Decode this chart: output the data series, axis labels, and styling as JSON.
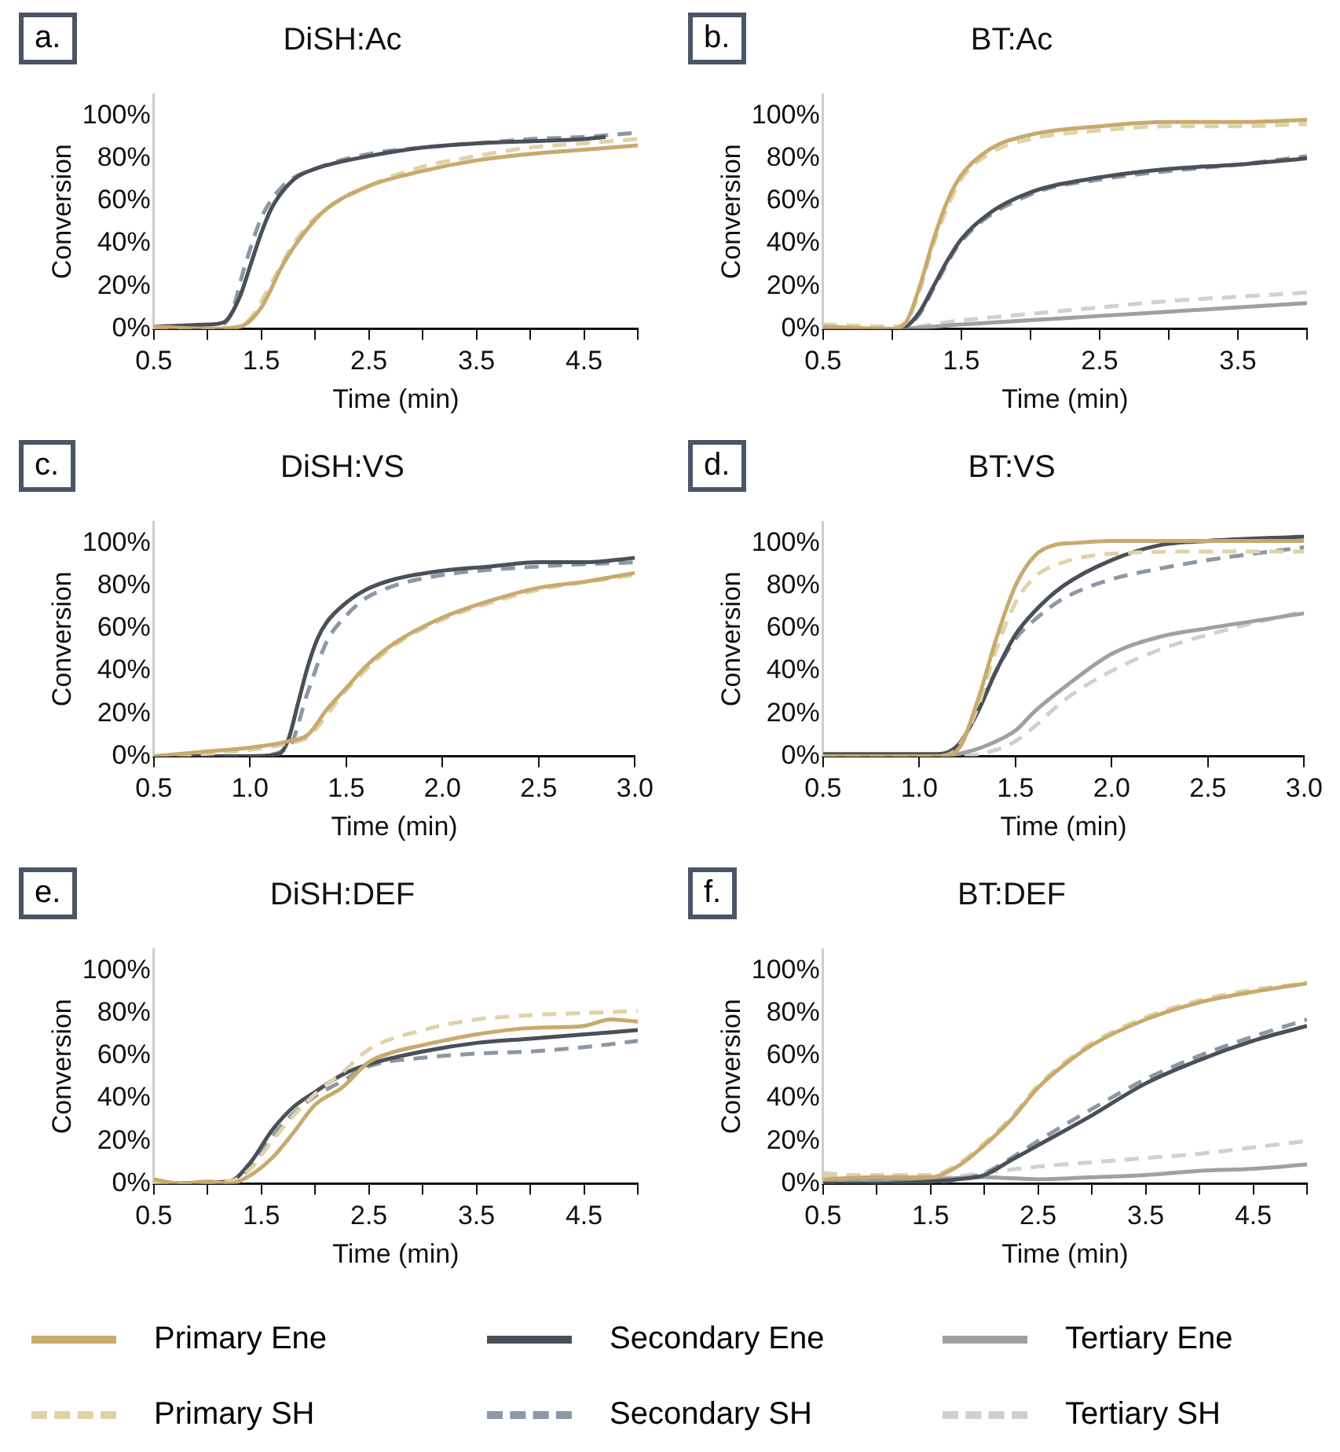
{
  "chart_data": [
    {
      "type": "line",
      "title": "DiSH:Ac",
      "xlabel": "Time (min)",
      "ylabel": "Conversion",
      "annotations": [
        "a."
      ],
      "legend": "bottom",
      "xlim": [
        0.5,
        5
      ],
      "ylim": [
        0,
        110
      ],
      "xticks": [
        0.5,
        {
          "value": 1,
          "label": null
        },
        1.5,
        {
          "value": 2,
          "label": null
        },
        2.5,
        {
          "value": 3,
          "label": null
        },
        3.5,
        {
          "value": 4,
          "label": null
        },
        4.5,
        {
          "value": 5,
          "label": null
        }
      ],
      "yticks": [
        {
          "value": 0,
          "label": "0%"
        },
        {
          "value": 20,
          "label": "20%"
        },
        {
          "value": 40,
          "label": "40%"
        },
        {
          "value": 60,
          "label": "60%"
        },
        {
          "value": 80,
          "label": "80%"
        },
        {
          "value": 100,
          "label": "100%"
        }
      ],
      "series": [
        {
          "name": "Primary Ene",
          "color": "#c8aa6e",
          "line_style": "solid",
          "x": [
            0.5,
            1.0,
            1.3,
            1.5,
            1.7,
            1.9,
            2.1,
            2.5,
            3.0,
            3.5,
            4.0,
            4.5,
            5.0
          ],
          "values": [
            1,
            0,
            1,
            10,
            30,
            45,
            56,
            67,
            74,
            79,
            82,
            84,
            86
          ]
        },
        {
          "name": "Primary SH",
          "color": "#e0d2a8",
          "line_style": "dashed",
          "x": [
            0.5,
            1.2,
            1.4,
            1.6,
            1.8,
            2.0,
            2.5,
            3.0,
            3.5,
            4.0,
            4.5,
            5.0
          ],
          "values": [
            0,
            0,
            5,
            22,
            40,
            52,
            67,
            76,
            81,
            85,
            87,
            89
          ]
        },
        {
          "name": "Secondary Ene",
          "color": "#4a5058",
          "line_style": "solid",
          "x": [
            0.5,
            1.0,
            1.15,
            1.3,
            1.4,
            1.5,
            1.6,
            1.8,
            2.0,
            2.5,
            3.0,
            3.5,
            4.0,
            4.5,
            4.7
          ],
          "values": [
            1,
            2,
            3,
            15,
            30,
            45,
            57,
            70,
            75,
            81,
            85,
            87,
            88,
            89,
            90
          ]
        },
        {
          "name": "Secondary SH",
          "color": "#8d97a6",
          "line_style": "dashed",
          "x": [
            0.5,
            1.0,
            1.2,
            1.35,
            1.5,
            1.7,
            2.0,
            2.5,
            3.0,
            3.5,
            4.0,
            4.5,
            5.0
          ],
          "values": [
            0,
            0,
            5,
            30,
            52,
            67,
            75,
            82,
            85,
            87,
            89,
            90,
            92
          ]
        }
      ]
    },
    {
      "type": "line",
      "title": "BT:Ac",
      "xlabel": "Time (min)",
      "ylabel": "Conversion",
      "annotations": [
        "b."
      ],
      "legend": "bottom",
      "xlim": [
        0.5,
        4
      ],
      "ylim": [
        0,
        110
      ],
      "xticks": [
        0.5,
        {
          "value": 1,
          "label": null
        },
        1.5,
        {
          "value": 2,
          "label": null
        },
        2.5,
        {
          "value": 3,
          "label": null
        },
        3.5,
        {
          "value": 4,
          "label": null
        }
      ],
      "yticks": [
        {
          "value": 0,
          "label": "0%"
        },
        {
          "value": 20,
          "label": "20%"
        },
        {
          "value": 40,
          "label": "40%"
        },
        {
          "value": 60,
          "label": "60%"
        },
        {
          "value": 80,
          "label": "80%"
        },
        {
          "value": 100,
          "label": "100%"
        }
      ],
      "series": [
        {
          "name": "Primary Ene",
          "color": "#c8aa6e",
          "line_style": "solid",
          "x": [
            0.5,
            1.0,
            1.1,
            1.2,
            1.3,
            1.4,
            1.5,
            1.7,
            2.0,
            2.5,
            3.0,
            3.5,
            4.0
          ],
          "values": [
            1,
            0,
            3,
            20,
            42,
            60,
            72,
            84,
            91,
            95,
            97,
            97,
            98
          ]
        },
        {
          "name": "Primary SH",
          "color": "#e0d2a8",
          "line_style": "dashed",
          "x": [
            0.5,
            1.0,
            1.1,
            1.2,
            1.3,
            1.5,
            1.7,
            2.0,
            2.5,
            3.0,
            3.5,
            4.0
          ],
          "values": [
            2,
            1,
            3,
            18,
            40,
            70,
            82,
            89,
            93,
            95,
            95,
            96
          ]
        },
        {
          "name": "Secondary Ene",
          "color": "#4a5058",
          "line_style": "solid",
          "x": [
            0.5,
            1.0,
            1.1,
            1.2,
            1.3,
            1.4,
            1.5,
            1.7,
            2.0,
            2.5,
            3.0,
            3.5,
            4.0
          ],
          "values": [
            0,
            0,
            1,
            8,
            20,
            32,
            42,
            54,
            64,
            71,
            75,
            77,
            80
          ]
        },
        {
          "name": "Secondary SH",
          "color": "#8d97a6",
          "line_style": "dashed",
          "x": [
            0.5,
            1.0,
            1.1,
            1.2,
            1.3,
            1.5,
            2.0,
            2.5,
            3.0,
            3.5,
            4.0
          ],
          "values": [
            0,
            0,
            1,
            7,
            19,
            41,
            63,
            70,
            74,
            77,
            81
          ]
        },
        {
          "name": "Tertiary Ene",
          "color": "#a0a0a0",
          "line_style": "solid",
          "x": [
            0.5,
            1.0,
            1.5,
            2.0,
            2.5,
            3.0,
            3.5,
            4.0
          ],
          "values": [
            0,
            0,
            2,
            4,
            6,
            8,
            10,
            12
          ]
        },
        {
          "name": "Tertiary SH",
          "color": "#d0d0d0",
          "line_style": "dashed",
          "x": [
            0.5,
            1.0,
            1.5,
            2.0,
            2.5,
            3.0,
            3.5,
            4.0
          ],
          "values": [
            0,
            0,
            4,
            7,
            10,
            13,
            15,
            17
          ]
        }
      ]
    },
    {
      "type": "line",
      "title": "DiSH:VS",
      "xlabel": "Time (min)",
      "ylabel": "Conversion",
      "annotations": [
        "c."
      ],
      "legend": "bottom",
      "xlim": [
        0.5,
        3
      ],
      "ylim": [
        0,
        110
      ],
      "xticks": [
        0.5,
        {
          "value": 1,
          "label": "1.0"
        },
        1.5,
        {
          "value": 2,
          "label": "2.0"
        },
        2.5,
        {
          "value": 3,
          "label": "3.0"
        }
      ],
      "yticks": [
        {
          "value": 0,
          "label": "0%"
        },
        {
          "value": 20,
          "label": "20%"
        },
        {
          "value": 40,
          "label": "40%"
        },
        {
          "value": 60,
          "label": "60%"
        },
        {
          "value": 80,
          "label": "80%"
        },
        {
          "value": 100,
          "label": "100%"
        }
      ],
      "series": [
        {
          "name": "Primary Ene",
          "color": "#c8aa6e",
          "line_style": "solid",
          "x": [
            0.5,
            0.75,
            1.0,
            1.2,
            1.3,
            1.4,
            1.5,
            1.6,
            1.75,
            2.0,
            2.25,
            2.5,
            2.75,
            3.0
          ],
          "values": [
            0,
            2,
            4,
            7,
            10,
            22,
            32,
            42,
            53,
            65,
            73,
            79,
            82,
            86
          ]
        },
        {
          "name": "Primary SH",
          "color": "#e0d2a8",
          "line_style": "dashed",
          "x": [
            0.5,
            0.75,
            1.0,
            1.2,
            1.3,
            1.5,
            1.75,
            2.0,
            2.25,
            2.5,
            3.0
          ],
          "values": [
            0,
            1,
            3,
            6,
            9,
            31,
            52,
            64,
            72,
            78,
            85
          ]
        },
        {
          "name": "Secondary Ene",
          "color": "#4a5058",
          "line_style": "solid",
          "x": [
            0.5,
            1.0,
            1.15,
            1.2,
            1.25,
            1.3,
            1.35,
            1.4,
            1.5,
            1.6,
            1.75,
            2.0,
            2.25,
            2.5,
            2.75,
            3.0
          ],
          "values": [
            0,
            0,
            1,
            8,
            25,
            42,
            55,
            63,
            72,
            78,
            83,
            87,
            89,
            91,
            91,
            93
          ]
        },
        {
          "name": "Secondary SH",
          "color": "#8d97a6",
          "line_style": "dashed",
          "x": [
            0.5,
            1.0,
            1.2,
            1.3,
            1.4,
            1.5,
            1.6,
            1.75,
            2.0,
            2.5,
            3.0
          ],
          "values": [
            0,
            0,
            4,
            30,
            54,
            66,
            74,
            80,
            85,
            89,
            91
          ]
        }
      ]
    },
    {
      "type": "line",
      "title": "BT:VS",
      "xlabel": "Time (min)",
      "ylabel": "Conversion",
      "annotations": [
        "d."
      ],
      "legend": "bottom",
      "xlim": [
        0.5,
        3
      ],
      "ylim": [
        0,
        110
      ],
      "xticks": [
        0.5,
        {
          "value": 1,
          "label": "1.0"
        },
        1.5,
        {
          "value": 2,
          "label": "2.0"
        },
        2.5,
        {
          "value": 3,
          "label": "3.0"
        }
      ],
      "yticks": [
        {
          "value": 0,
          "label": "0%"
        },
        {
          "value": 20,
          "label": "20%"
        },
        {
          "value": 40,
          "label": "40%"
        },
        {
          "value": 60,
          "label": "60%"
        },
        {
          "value": 80,
          "label": "80%"
        },
        {
          "value": 100,
          "label": "100%"
        }
      ],
      "series": [
        {
          "name": "Primary Ene",
          "color": "#c8aa6e",
          "line_style": "solid",
          "x": [
            0.5,
            1.1,
            1.2,
            1.3,
            1.4,
            1.5,
            1.6,
            1.7,
            1.8,
            2.0,
            2.5,
            3.0
          ],
          "values": [
            0,
            0,
            3,
            25,
            55,
            80,
            94,
            99,
            100,
            101,
            101,
            101
          ]
        },
        {
          "name": "Primary SH",
          "color": "#e0d2a8",
          "line_style": "dashed",
          "x": [
            0.5,
            1.1,
            1.2,
            1.3,
            1.4,
            1.5,
            1.6,
            1.75,
            2.0,
            2.5,
            3.0
          ],
          "values": [
            0,
            0,
            4,
            22,
            50,
            72,
            84,
            91,
            95,
            96,
            96
          ]
        },
        {
          "name": "Secondary Ene",
          "color": "#4a5058",
          "line_style": "solid",
          "x": [
            0.5,
            1.0,
            1.1,
            1.2,
            1.3,
            1.4,
            1.5,
            1.6,
            1.75,
            2.0,
            2.25,
            2.5,
            3.0
          ],
          "values": [
            1,
            1,
            1,
            5,
            20,
            40,
            57,
            68,
            80,
            92,
            99,
            101,
            103
          ]
        },
        {
          "name": "Secondary SH",
          "color": "#8d97a6",
          "line_style": "dashed",
          "x": [
            0.5,
            1.0,
            1.2,
            1.3,
            1.4,
            1.5,
            1.6,
            1.75,
            2.0,
            2.25,
            2.5,
            3.0
          ],
          "values": [
            0,
            0,
            4,
            22,
            40,
            55,
            64,
            74,
            83,
            88,
            92,
            98
          ]
        },
        {
          "name": "Tertiary Ene",
          "color": "#a0a0a0",
          "line_style": "solid",
          "x": [
            0.5,
            1.1,
            1.25,
            1.4,
            1.5,
            1.6,
            1.75,
            2.0,
            2.25,
            2.5,
            3.0
          ],
          "values": [
            0,
            0,
            2,
            7,
            12,
            21,
            32,
            48,
            56,
            60,
            67
          ]
        },
        {
          "name": "Tertiary SH",
          "color": "#d0d0d0",
          "line_style": "dashed",
          "x": [
            0.5,
            1.2,
            1.4,
            1.5,
            1.6,
            1.75,
            2.0,
            2.25,
            2.5,
            3.0
          ],
          "values": [
            0,
            0,
            3,
            7,
            14,
            26,
            40,
            50,
            57,
            68
          ]
        }
      ]
    },
    {
      "type": "line",
      "title": "DiSH:DEF",
      "xlabel": "Time (min)",
      "ylabel": "Conversion",
      "annotations": [
        "e."
      ],
      "legend": "bottom",
      "xlim": [
        0.5,
        5
      ],
      "ylim": [
        0,
        110
      ],
      "xticks": [
        0.5,
        {
          "value": 1,
          "label": null
        },
        1.5,
        {
          "value": 2,
          "label": null
        },
        2.5,
        {
          "value": 3,
          "label": null
        },
        3.5,
        {
          "value": 4,
          "label": null
        },
        4.5,
        {
          "value": 5,
          "label": null
        }
      ],
      "yticks": [
        {
          "value": 0,
          "label": "0%"
        },
        {
          "value": 20,
          "label": "20%"
        },
        {
          "value": 40,
          "label": "40%"
        },
        {
          "value": 60,
          "label": "60%"
        },
        {
          "value": 80,
          "label": "80%"
        },
        {
          "value": 100,
          "label": "100%"
        }
      ],
      "series": [
        {
          "name": "Primary Ene",
          "color": "#c8aa6e",
          "line_style": "solid",
          "x": [
            0.5,
            0.75,
            1.0,
            1.2,
            1.4,
            1.6,
            1.8,
            2.0,
            2.25,
            2.5,
            2.75,
            3.0,
            3.5,
            4.0,
            4.5,
            4.75,
            5.0
          ],
          "values": [
            2,
            0,
            1,
            0,
            4,
            12,
            24,
            37,
            45,
            57,
            62,
            65,
            70,
            73,
            74,
            77,
            76
          ]
        },
        {
          "name": "Primary SH",
          "color": "#e0d2a8",
          "line_style": "dashed",
          "x": [
            0.5,
            1.2,
            1.4,
            1.6,
            1.8,
            2.0,
            2.25,
            2.5,
            3.0,
            3.5,
            4.0,
            4.5,
            5.0
          ],
          "values": [
            0,
            1,
            7,
            20,
            32,
            42,
            52,
            63,
            72,
            77,
            79,
            80,
            81
          ]
        },
        {
          "name": "Secondary Ene",
          "color": "#4a5058",
          "line_style": "solid",
          "x": [
            0.5,
            1.2,
            1.4,
            1.6,
            1.8,
            2.0,
            2.25,
            2.5,
            3.0,
            3.5,
            4.0,
            4.5,
            5.0
          ],
          "values": [
            0,
            1,
            10,
            25,
            36,
            43,
            51,
            56,
            62,
            66,
            68,
            70,
            72
          ]
        },
        {
          "name": "Secondary SH",
          "color": "#8d97a6",
          "line_style": "dashed",
          "x": [
            0.5,
            1.2,
            1.4,
            1.6,
            1.8,
            2.0,
            2.25,
            2.5,
            3.0,
            3.5,
            4.0,
            4.5,
            5.0
          ],
          "values": [
            0,
            0,
            8,
            22,
            33,
            41,
            48,
            55,
            59,
            61,
            62,
            64,
            67
          ]
        }
      ]
    },
    {
      "type": "line",
      "title": "BT:DEF",
      "xlabel": "Time (min)",
      "ylabel": "Conversion",
      "annotations": [
        "f."
      ],
      "legend": "bottom",
      "xlim": [
        0.5,
        5
      ],
      "ylim": [
        0,
        110
      ],
      "xticks": [
        0.5,
        {
          "value": 1,
          "label": null
        },
        1.5,
        {
          "value": 2,
          "label": null
        },
        2.5,
        {
          "value": 3,
          "label": null
        },
        3.5,
        {
          "value": 4,
          "label": null
        },
        4.5,
        {
          "value": 5,
          "label": null
        }
      ],
      "yticks": [
        {
          "value": 0,
          "label": "0%"
        },
        {
          "value": 20,
          "label": "20%"
        },
        {
          "value": 40,
          "label": "40%"
        },
        {
          "value": 60,
          "label": "60%"
        },
        {
          "value": 80,
          "label": "80%"
        },
        {
          "value": 100,
          "label": "100%"
        }
      ],
      "series": [
        {
          "name": "Primary Ene",
          "color": "#c8aa6e",
          "line_style": "solid",
          "x": [
            0.5,
            1.0,
            1.5,
            1.75,
            2.0,
            2.25,
            2.5,
            2.75,
            3.0,
            3.5,
            4.0,
            4.5,
            5.0
          ],
          "values": [
            2,
            3,
            3,
            8,
            18,
            30,
            45,
            56,
            65,
            77,
            85,
            90,
            94
          ]
        },
        {
          "name": "Primary SH",
          "color": "#e0d2a8",
          "line_style": "dashed",
          "x": [
            0.5,
            1.0,
            1.5,
            1.75,
            2.0,
            2.25,
            2.5,
            2.75,
            3.0,
            3.5,
            4.0,
            4.5,
            5.0
          ],
          "values": [
            4,
            4,
            4,
            9,
            19,
            31,
            46,
            57,
            66,
            78,
            86,
            91,
            94
          ]
        },
        {
          "name": "Secondary Ene",
          "color": "#4a5058",
          "line_style": "solid",
          "x": [
            0.5,
            1.0,
            1.5,
            1.75,
            2.0,
            2.25,
            2.5,
            3.0,
            3.5,
            4.0,
            4.5,
            5.0
          ],
          "values": [
            0,
            0,
            1,
            2,
            4,
            11,
            18,
            32,
            47,
            58,
            67,
            74
          ]
        },
        {
          "name": "Secondary SH",
          "color": "#8d97a6",
          "line_style": "dashed",
          "x": [
            0.5,
            1.5,
            2.0,
            2.25,
            2.5,
            3.0,
            3.5,
            4.0,
            4.5,
            5.0
          ],
          "values": [
            1,
            1,
            5,
            12,
            20,
            35,
            49,
            60,
            69,
            77
          ]
        },
        {
          "name": "Tertiary Ene",
          "color": "#a0a0a0",
          "line_style": "solid",
          "x": [
            0.5,
            1.5,
            2.0,
            2.5,
            3.0,
            3.5,
            4.0,
            4.5,
            5.0
          ],
          "values": [
            1,
            2,
            3,
            2,
            3,
            4,
            6,
            7,
            9
          ]
        },
        {
          "name": "Tertiary SH",
          "color": "#d0d0d0",
          "line_style": "dashed",
          "x": [
            0.5,
            1.0,
            1.1,
            1.25,
            1.5,
            2.0,
            2.5,
            3.0,
            3.5,
            4.0,
            4.5,
            5.0
          ],
          "values": [
            5,
            3,
            5,
            1,
            2,
            5,
            8,
            10,
            12,
            14,
            17,
            20
          ]
        }
      ]
    }
  ]
}
